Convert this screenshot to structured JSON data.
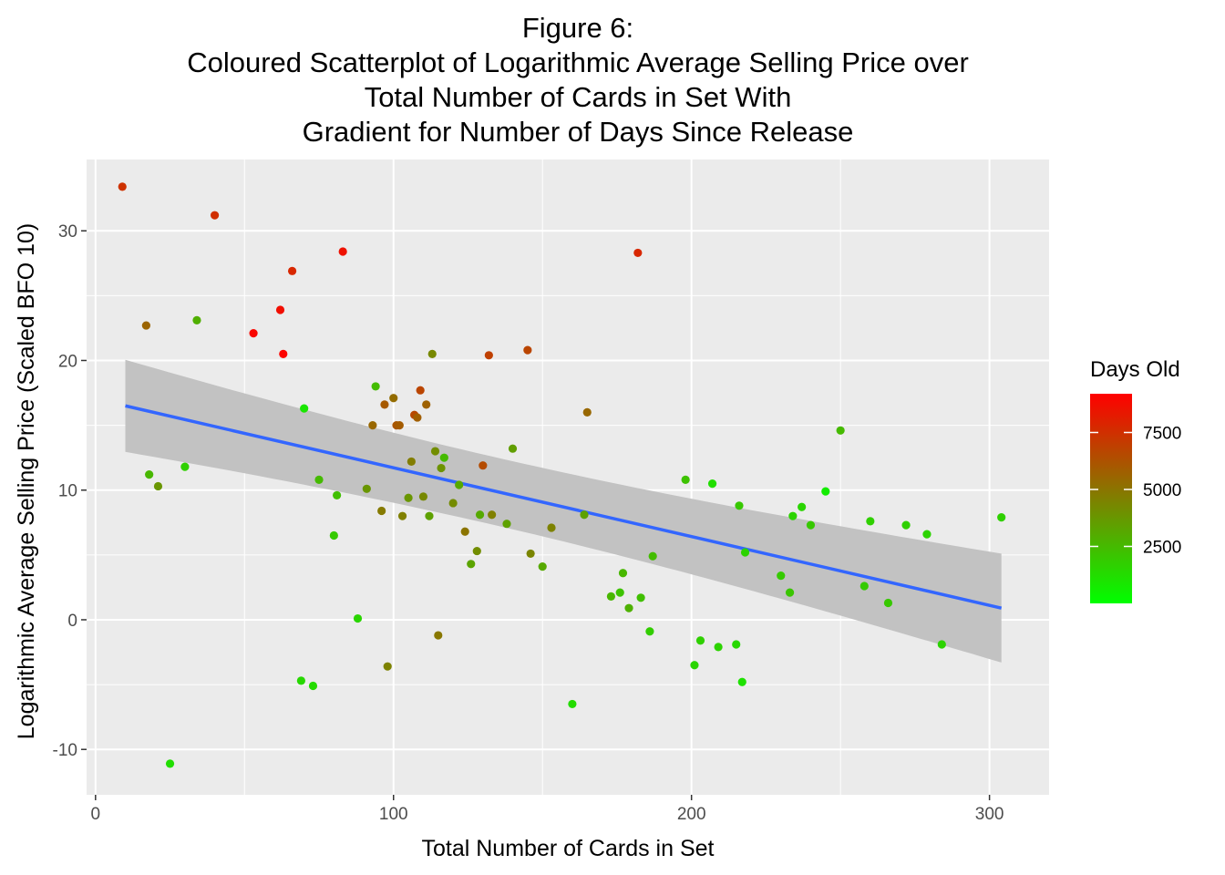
{
  "chart_data": {
    "type": "scatter",
    "title_lines": [
      "Figure 6:",
      "Coloured Scatterplot of Logarithmic Average Selling Price over",
      "Total Number of Cards in Set With",
      "Gradient for Number of Days Since Release"
    ],
    "xlabel": "Total Number of Cards in Set",
    "ylabel": "Logarithmic Average Selling Price (Scaled BFO 10)",
    "xlim": [
      -3,
      320
    ],
    "ylim": [
      -13.5,
      35.5
    ],
    "x_ticks": [
      0,
      100,
      200,
      300
    ],
    "x_tick_labels": [
      "0",
      "100",
      "200",
      "300"
    ],
    "y_ticks": [
      -10,
      0,
      10,
      20,
      30
    ],
    "y_tick_labels": [
      "-10",
      "0",
      "10",
      "20",
      "30"
    ],
    "grid": true,
    "background": "#ebebeb",
    "color_scale": {
      "name": "Days Old",
      "low_color": "#00ff00",
      "high_color": "#ff0000",
      "domain": [
        0,
        9200
      ],
      "ticks": [
        2500,
        5000,
        7500
      ],
      "tick_labels": [
        "2500",
        "5000",
        "7500"
      ]
    },
    "legend_position": "right",
    "points": [
      {
        "x": 9,
        "y": 33.4,
        "days": 7400
      },
      {
        "x": 17,
        "y": 22.7,
        "days": 5600
      },
      {
        "x": 18,
        "y": 11.2,
        "days": 2600
      },
      {
        "x": 21,
        "y": 10.3,
        "days": 3800
      },
      {
        "x": 25,
        "y": -11.1,
        "days": 1200
      },
      {
        "x": 30,
        "y": 11.8,
        "days": 1700
      },
      {
        "x": 34,
        "y": 23.1,
        "days": 2900
      },
      {
        "x": 40,
        "y": 31.2,
        "days": 7500
      },
      {
        "x": 53,
        "y": 22.1,
        "days": 9000
      },
      {
        "x": 62,
        "y": 23.9,
        "days": 8700
      },
      {
        "x": 63,
        "y": 20.5,
        "days": 9100
      },
      {
        "x": 66,
        "y": 26.9,
        "days": 7800
      },
      {
        "x": 69,
        "y": -4.7,
        "days": 1400
      },
      {
        "x": 70,
        "y": 16.3,
        "days": 900
      },
      {
        "x": 73,
        "y": -5.1,
        "days": 1300
      },
      {
        "x": 75,
        "y": 10.8,
        "days": 2500
      },
      {
        "x": 80,
        "y": 6.5,
        "days": 1900
      },
      {
        "x": 81,
        "y": 9.6,
        "days": 2300
      },
      {
        "x": 83,
        "y": 28.4,
        "days": 8600
      },
      {
        "x": 88,
        "y": 0.1,
        "days": 1500
      },
      {
        "x": 91,
        "y": 10.1,
        "days": 3800
      },
      {
        "x": 93,
        "y": 15.0,
        "days": 5500
      },
      {
        "x": 94,
        "y": 18.0,
        "days": 2400
      },
      {
        "x": 96,
        "y": 8.4,
        "days": 4800
      },
      {
        "x": 97,
        "y": 16.6,
        "days": 6000
      },
      {
        "x": 98,
        "y": -3.6,
        "days": 4500
      },
      {
        "x": 100,
        "y": 17.1,
        "days": 5300
      },
      {
        "x": 101,
        "y": 15.0,
        "days": 6100
      },
      {
        "x": 102,
        "y": 15.0,
        "days": 5900
      },
      {
        "x": 103,
        "y": 8.0,
        "days": 4600
      },
      {
        "x": 105,
        "y": 9.4,
        "days": 3800
      },
      {
        "x": 106,
        "y": 12.2,
        "days": 4700
      },
      {
        "x": 107,
        "y": 15.8,
        "days": 6600
      },
      {
        "x": 108,
        "y": 15.6,
        "days": 5800
      },
      {
        "x": 109,
        "y": 17.7,
        "days": 6700
      },
      {
        "x": 110,
        "y": 9.5,
        "days": 4300
      },
      {
        "x": 111,
        "y": 16.6,
        "days": 5700
      },
      {
        "x": 112,
        "y": 8.0,
        "days": 3400
      },
      {
        "x": 113,
        "y": 20.5,
        "days": 4300
      },
      {
        "x": 114,
        "y": 13.0,
        "days": 4100
      },
      {
        "x": 115,
        "y": -1.2,
        "days": 4900
      },
      {
        "x": 116,
        "y": 11.7,
        "days": 3900
      },
      {
        "x": 117,
        "y": 12.5,
        "days": 2500
      },
      {
        "x": 120,
        "y": 9.0,
        "days": 4200
      },
      {
        "x": 122,
        "y": 10.4,
        "days": 3100
      },
      {
        "x": 124,
        "y": 6.8,
        "days": 5000
      },
      {
        "x": 126,
        "y": 4.3,
        "days": 3300
      },
      {
        "x": 128,
        "y": 5.3,
        "days": 4100
      },
      {
        "x": 129,
        "y": 8.1,
        "days": 3100
      },
      {
        "x": 130,
        "y": 11.9,
        "days": 6500
      },
      {
        "x": 132,
        "y": 20.4,
        "days": 6900
      },
      {
        "x": 133,
        "y": 8.1,
        "days": 4600
      },
      {
        "x": 138,
        "y": 7.4,
        "days": 3400
      },
      {
        "x": 140,
        "y": 13.2,
        "days": 3500
      },
      {
        "x": 145,
        "y": 20.8,
        "days": 6700
      },
      {
        "x": 146,
        "y": 5.1,
        "days": 4400
      },
      {
        "x": 150,
        "y": 4.1,
        "days": 3100
      },
      {
        "x": 153,
        "y": 7.1,
        "days": 4500
      },
      {
        "x": 160,
        "y": -6.5,
        "days": 1300
      },
      {
        "x": 164,
        "y": 8.1,
        "days": 3400
      },
      {
        "x": 165,
        "y": 16.0,
        "days": 5500
      },
      {
        "x": 173,
        "y": 1.8,
        "days": 2600
      },
      {
        "x": 176,
        "y": 2.1,
        "days": 2200
      },
      {
        "x": 177,
        "y": 3.6,
        "days": 2600
      },
      {
        "x": 179,
        "y": 0.9,
        "days": 2800
      },
      {
        "x": 182,
        "y": 28.3,
        "days": 7800
      },
      {
        "x": 183,
        "y": 1.7,
        "days": 2300
      },
      {
        "x": 186,
        "y": -0.9,
        "days": 1800
      },
      {
        "x": 187,
        "y": 4.9,
        "days": 2400
      },
      {
        "x": 198,
        "y": 10.8,
        "days": 2200
      },
      {
        "x": 201,
        "y": -3.5,
        "days": 1500
      },
      {
        "x": 203,
        "y": -1.6,
        "days": 1700
      },
      {
        "x": 207,
        "y": 10.5,
        "days": 1200
      },
      {
        "x": 209,
        "y": -2.1,
        "days": 1600
      },
      {
        "x": 215,
        "y": -1.9,
        "days": 1400
      },
      {
        "x": 216,
        "y": 8.8,
        "days": 2000
      },
      {
        "x": 217,
        "y": -4.8,
        "days": 1100
      },
      {
        "x": 218,
        "y": 5.2,
        "days": 1600
      },
      {
        "x": 230,
        "y": 3.4,
        "days": 1900
      },
      {
        "x": 233,
        "y": 2.1,
        "days": 2100
      },
      {
        "x": 234,
        "y": 8.0,
        "days": 1600
      },
      {
        "x": 237,
        "y": 8.7,
        "days": 1500
      },
      {
        "x": 240,
        "y": 7.3,
        "days": 2000
      },
      {
        "x": 245,
        "y": 9.9,
        "days": 700
      },
      {
        "x": 250,
        "y": 14.6,
        "days": 2500
      },
      {
        "x": 258,
        "y": 2.6,
        "days": 1900
      },
      {
        "x": 260,
        "y": 7.6,
        "days": 1700
      },
      {
        "x": 266,
        "y": 1.3,
        "days": 2000
      },
      {
        "x": 272,
        "y": 7.3,
        "days": 1700
      },
      {
        "x": 279,
        "y": 6.6,
        "days": 1600
      },
      {
        "x": 284,
        "y": -1.9,
        "days": 1600
      },
      {
        "x": 304,
        "y": 7.9,
        "days": 1700
      }
    ],
    "trend": {
      "method": "linear",
      "color": "#3366ff",
      "band_color": "#c2c2c2",
      "x": [
        10,
        304
      ],
      "y": [
        16.5,
        0.9
      ],
      "upper": [
        20.0,
        5.1
      ],
      "lower": [
        12.9,
        -3.3
      ],
      "center_x": 134
    }
  }
}
